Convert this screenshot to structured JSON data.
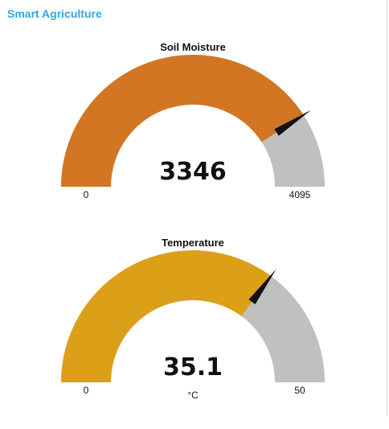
{
  "app": {
    "title": "Smart Agriculture"
  },
  "gauges": [
    {
      "id": "soil",
      "title": "Soil Moisture",
      "value": 3346,
      "value_text": "3346",
      "min": 0,
      "max": 4095,
      "min_label": "0",
      "max_label": "4095",
      "unit": "",
      "fill_color": "#d27624",
      "track_color": "#c0c0c0",
      "needle_color": "#111111"
    },
    {
      "id": "temp",
      "title": "Temperature",
      "value": 35.1,
      "value_text": "35.1",
      "min": 0,
      "max": 50,
      "min_label": "0",
      "max_label": "50",
      "unit": "°C",
      "fill_color": "#dba018",
      "track_color": "#c0c0c0",
      "needle_color": "#111111"
    }
  ]
}
